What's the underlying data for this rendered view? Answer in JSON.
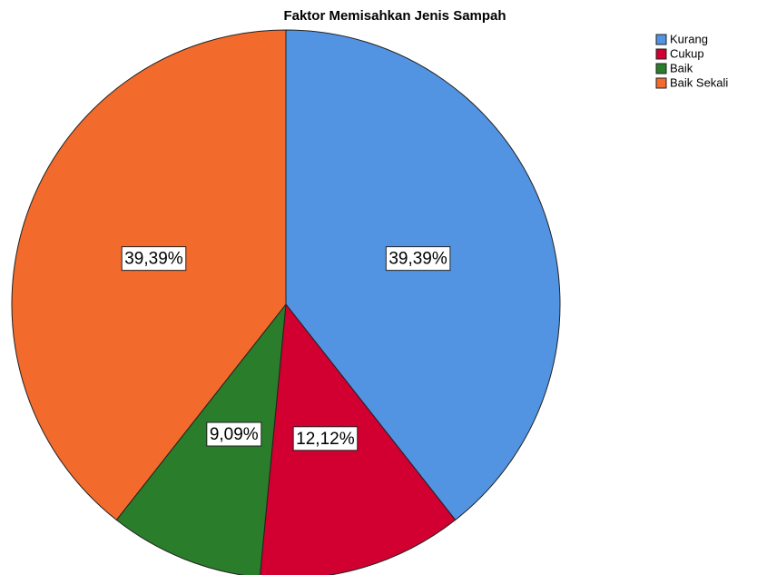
{
  "chart_data": {
    "type": "pie",
    "title": "Faktor Memisahkan Jenis Sampah",
    "categories": [
      "Kurang",
      "Cukup",
      "Baik",
      "Baik Sekali"
    ],
    "values": [
      39.39,
      12.12,
      9.09,
      39.39
    ],
    "value_labels": [
      "39,39%",
      "12,12%",
      "9,09%",
      "39,39%"
    ],
    "colors": [
      "#5294e2",
      "#d10030",
      "#2a7d2a",
      "#f26a2c"
    ],
    "legend": "top-right"
  }
}
